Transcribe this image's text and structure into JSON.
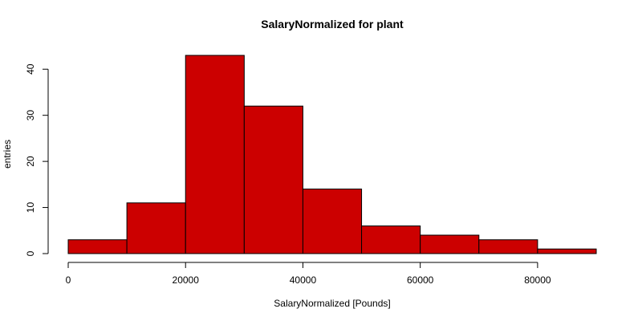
{
  "chart_data": {
    "type": "bar",
    "title": "SalaryNormalized for plant",
    "xlabel": "SalaryNormalized [Pounds]",
    "ylabel": "entries",
    "bins": [
      {
        "start": 0,
        "end": 10000,
        "count": 3
      },
      {
        "start": 10000,
        "end": 20000,
        "count": 11
      },
      {
        "start": 20000,
        "end": 30000,
        "count": 43
      },
      {
        "start": 30000,
        "end": 40000,
        "count": 32
      },
      {
        "start": 40000,
        "end": 50000,
        "count": 14
      },
      {
        "start": 50000,
        "end": 60000,
        "count": 6
      },
      {
        "start": 60000,
        "end": 70000,
        "count": 4
      },
      {
        "start": 70000,
        "end": 80000,
        "count": 3
      },
      {
        "start": 80000,
        "end": 90000,
        "count": 1
      }
    ],
    "xlim": [
      0,
      90000
    ],
    "ylim": [
      0,
      43
    ],
    "x_ticks": [
      0,
      20000,
      40000,
      60000,
      80000
    ],
    "y_ticks": [
      0,
      10,
      20,
      30,
      40
    ],
    "bar_color": "#cc0000",
    "grid": false,
    "legend": "none"
  }
}
